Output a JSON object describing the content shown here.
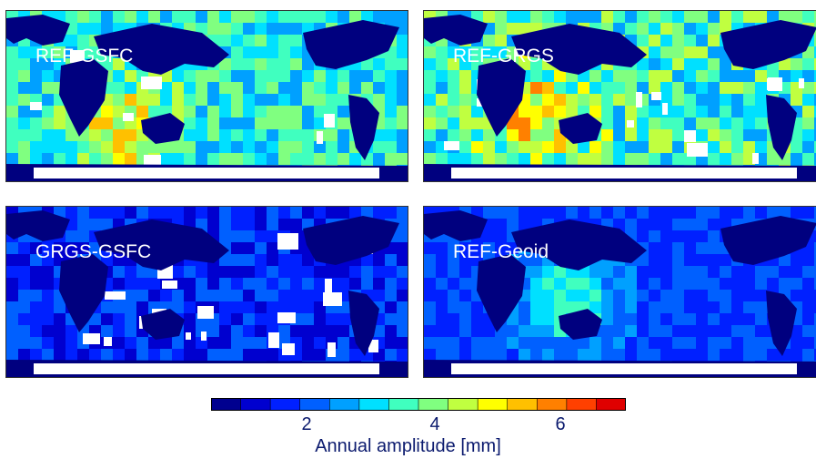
{
  "chart_data": {
    "type": "heatmap",
    "panels": [
      {
        "title": "REF-GSFC"
      },
      {
        "title": "REF-GRGS"
      },
      {
        "title": "GRGS-GSFC"
      },
      {
        "title": "REF-Geoid"
      }
    ],
    "colorbar": {
      "label": "Annual amplitude [mm]",
      "range": [
        0,
        7
      ],
      "ticks": [
        2,
        4,
        6
      ],
      "tick_labels": [
        "2",
        "4",
        "6"
      ],
      "n_bins": 14,
      "colors": [
        "#00008f",
        "#0000cf",
        "#0020ff",
        "#0060ff",
        "#00a0ff",
        "#00e0ff",
        "#40ffbf",
        "#80ff80",
        "#c0ff40",
        "#ffff00",
        "#ffc000",
        "#ff8000",
        "#ff4000",
        "#df0000"
      ]
    },
    "land_color": "#00007f",
    "nodata_color": "#ffffff"
  }
}
